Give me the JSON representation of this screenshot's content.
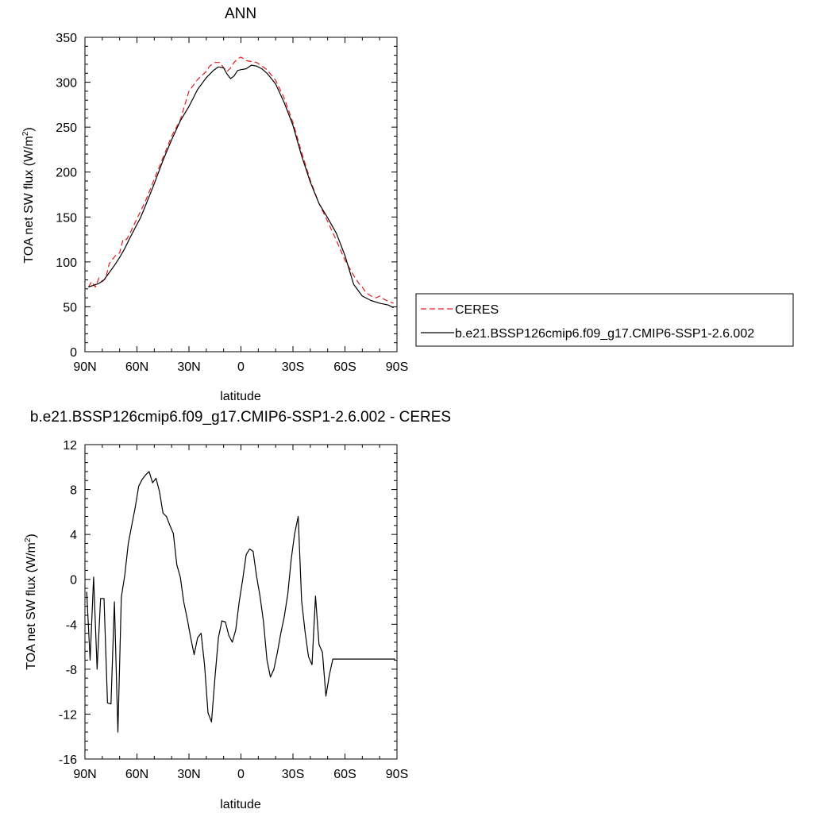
{
  "chart_data": [
    {
      "type": "line",
      "title": "ANN",
      "xlabel": "latitude",
      "ylabel": "TOA net SW flux (W/m",
      "ylabel_sup": "2",
      "ylabel_tail": ")",
      "xlim": [
        90,
        -90
      ],
      "ylim": [
        0,
        350
      ],
      "xticks": [
        {
          "value": 90,
          "label": "90N"
        },
        {
          "value": 60,
          "label": "60N"
        },
        {
          "value": 30,
          "label": "30N"
        },
        {
          "value": 0,
          "label": "0"
        },
        {
          "value": -30,
          "label": "30S"
        },
        {
          "value": -60,
          "label": "60S"
        },
        {
          "value": -90,
          "label": "90S"
        }
      ],
      "yticks": [
        0,
        50,
        100,
        150,
        200,
        250,
        300,
        350
      ],
      "grid": false,
      "legend_position": "right",
      "series": [
        {
          "name": "CERES",
          "color": "#e41a1c",
          "dash": true,
          "x": [
            88,
            86,
            84,
            82,
            80,
            78,
            76,
            74,
            72,
            70,
            68,
            66,
            64,
            62,
            60,
            55,
            50,
            45,
            40,
            35,
            30,
            25,
            20,
            18,
            15,
            12,
            10,
            8,
            6,
            4,
            2,
            0,
            -3,
            -6,
            -9,
            -12,
            -15,
            -20,
            -25,
            -30,
            -35,
            -40,
            -45,
            -50,
            -55,
            -60,
            -65,
            -68,
            -70,
            -72,
            -75,
            -78,
            -80,
            -82,
            -85,
            -88
          ],
          "y": [
            72,
            78,
            72,
            82,
            78,
            82,
            98,
            103,
            108,
            110,
            125,
            125,
            132,
            140,
            148,
            168,
            192,
            216,
            240,
            258,
            290,
            303,
            312,
            318,
            322,
            322,
            316,
            312,
            316,
            322,
            326,
            328,
            324,
            323,
            322,
            318,
            314,
            302,
            282,
            255,
            222,
            191,
            165,
            145,
            124,
            102,
            85,
            76,
            72,
            66,
            62,
            60,
            62,
            59,
            56,
            54
          ]
        },
        {
          "name": "b.e21.BSSP126cmip6.f09_g17.CMIP6-SSP1-2.6.002",
          "color": "#000000",
          "dash": false,
          "x": [
            88,
            85,
            82,
            79,
            76,
            73,
            70,
            67,
            64,
            61,
            58,
            55,
            50,
            45,
            40,
            35,
            30,
            25,
            20,
            16,
            13,
            10,
            8,
            6,
            4,
            2,
            0,
            -3,
            -6,
            -9,
            -12,
            -15,
            -20,
            -25,
            -30,
            -35,
            -40,
            -45,
            -50,
            -55,
            -60,
            -65,
            -70,
            -75,
            -80,
            -85,
            -88
          ],
          "y": [
            72,
            74,
            76,
            80,
            88,
            96,
            105,
            115,
            127,
            138,
            149,
            163,
            187,
            213,
            236,
            257,
            273,
            292,
            305,
            313,
            317,
            316,
            309,
            304,
            307,
            313,
            314,
            315,
            319,
            318,
            315,
            310,
            298,
            277,
            252,
            218,
            189,
            165,
            149,
            132,
            107,
            75,
            62,
            57,
            54,
            52,
            49
          ]
        }
      ]
    },
    {
      "type": "line",
      "title": "b.e21.BSSP126cmip6.f09_g17.CMIP6-SSP1-2.6.002 - CERES",
      "xlabel": "latitude",
      "ylabel": "TOA net SW flux (W/m",
      "ylabel_sup": "2",
      "ylabel_tail": ")",
      "xlim": [
        90,
        -90
      ],
      "ylim": [
        -16,
        12
      ],
      "xticks": [
        {
          "value": 90,
          "label": "90N"
        },
        {
          "value": 60,
          "label": "60N"
        },
        {
          "value": 30,
          "label": "30N"
        },
        {
          "value": 0,
          "label": "0"
        },
        {
          "value": -30,
          "label": "30S"
        },
        {
          "value": -60,
          "label": "60S"
        },
        {
          "value": -90,
          "label": "90S"
        }
      ],
      "yticks": [
        -16,
        -12,
        -8,
        -4,
        0,
        4,
        8,
        12
      ],
      "grid": false,
      "series": [
        {
          "color": "#000000",
          "dash": false,
          "x": [
            89,
            87,
            85,
            83,
            81,
            79,
            77,
            75,
            73,
            71,
            69,
            67,
            65,
            63,
            61,
            59,
            57,
            55,
            53,
            51,
            49,
            47,
            45,
            43,
            41,
            39,
            37,
            35,
            33,
            31,
            29,
            27,
            25,
            23,
            21,
            19,
            17,
            15,
            13,
            11,
            9,
            7,
            5,
            3,
            1,
            -1,
            -3,
            -5,
            -7,
            -9,
            -11,
            -13,
            -15,
            -17,
            -19,
            -21,
            -23,
            -25,
            -27,
            -29,
            -31,
            -33,
            -35,
            -37,
            -39,
            -41,
            -43,
            -45,
            -47,
            -49,
            -51,
            -53,
            -55,
            -57,
            -59,
            -61,
            -63,
            -65,
            -67,
            -69,
            -71,
            -73,
            -75,
            -77,
            -79,
            -81,
            -83,
            -85,
            -87,
            -89
          ],
          "y": [
            -1.1,
            -7.2,
            0.2,
            -8.0,
            -1.7,
            -1.7,
            -11.0,
            -11.1,
            -2.0,
            -13.6,
            -1.6,
            0.4,
            3.2,
            4.8,
            6.4,
            8.3,
            8.9,
            9.3,
            9.6,
            8.6,
            9.0,
            7.8,
            5.9,
            5.6,
            4.8,
            4.1,
            1.3,
            0.2,
            -2.0,
            -3.5,
            -5.2,
            -6.7,
            -5.2,
            -4.8,
            -7.6,
            -11.9,
            -12.7,
            -8.7,
            -5.2,
            -3.7,
            -3.8,
            -5.0,
            -5.6,
            -4.5,
            -2.0,
            0.0,
            2.2,
            2.7,
            2.5,
            0.3,
            -1.5,
            -3.8,
            -7.2,
            -8.7,
            -8.0,
            -6.5,
            -4.8,
            -3.3,
            -1.3,
            1.8,
            4.1,
            5.6,
            -1.9,
            -4.7,
            -6.9,
            -7.6,
            -1.5,
            -5.8,
            -6.5,
            -10.4,
            -8.5,
            -7.1,
            -7.1,
            -7.1,
            -7.1,
            -7.1,
            -7.1,
            -7.1,
            -7.1,
            -7.1,
            -7.1,
            -7.1,
            -7.1,
            -7.1,
            -7.1,
            -7.1,
            -7.1,
            -7.1,
            -7.1,
            -7.1
          ]
        }
      ]
    }
  ]
}
